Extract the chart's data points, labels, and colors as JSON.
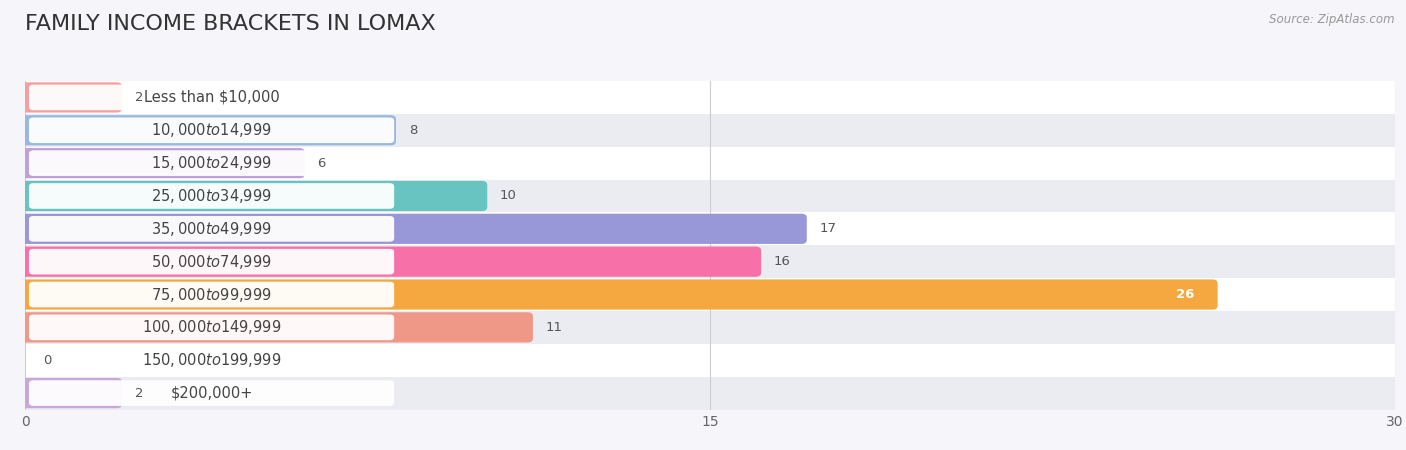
{
  "title": "FAMILY INCOME BRACKETS IN LOMAX",
  "source": "Source: ZipAtlas.com",
  "categories": [
    "Less than $10,000",
    "$10,000 to $14,999",
    "$15,000 to $24,999",
    "$25,000 to $34,999",
    "$35,000 to $49,999",
    "$50,000 to $74,999",
    "$75,000 to $99,999",
    "$100,000 to $149,999",
    "$150,000 to $199,999",
    "$200,000+"
  ],
  "values": [
    2,
    8,
    6,
    10,
    17,
    16,
    26,
    11,
    0,
    2
  ],
  "bar_colors": [
    "#f4a0a0",
    "#98b8e0",
    "#c0a0d8",
    "#68c4c0",
    "#9898d8",
    "#f870a8",
    "#f5a840",
    "#f09888",
    "#90b8e8",
    "#c8a8d8"
  ],
  "row_colors": [
    "#ffffff",
    "#ebebf2",
    "#ffffff",
    "#ebebf2",
    "#ffffff",
    "#ebebf2",
    "#ffffff",
    "#ebebf2",
    "#ffffff",
    "#ebebf2"
  ],
  "xlim": [
    0,
    30
  ],
  "xticks": [
    0,
    15,
    30
  ],
  "background_color": "#f5f5fa",
  "title_fontsize": 16,
  "label_fontsize": 10.5,
  "value_fontsize": 9.5
}
